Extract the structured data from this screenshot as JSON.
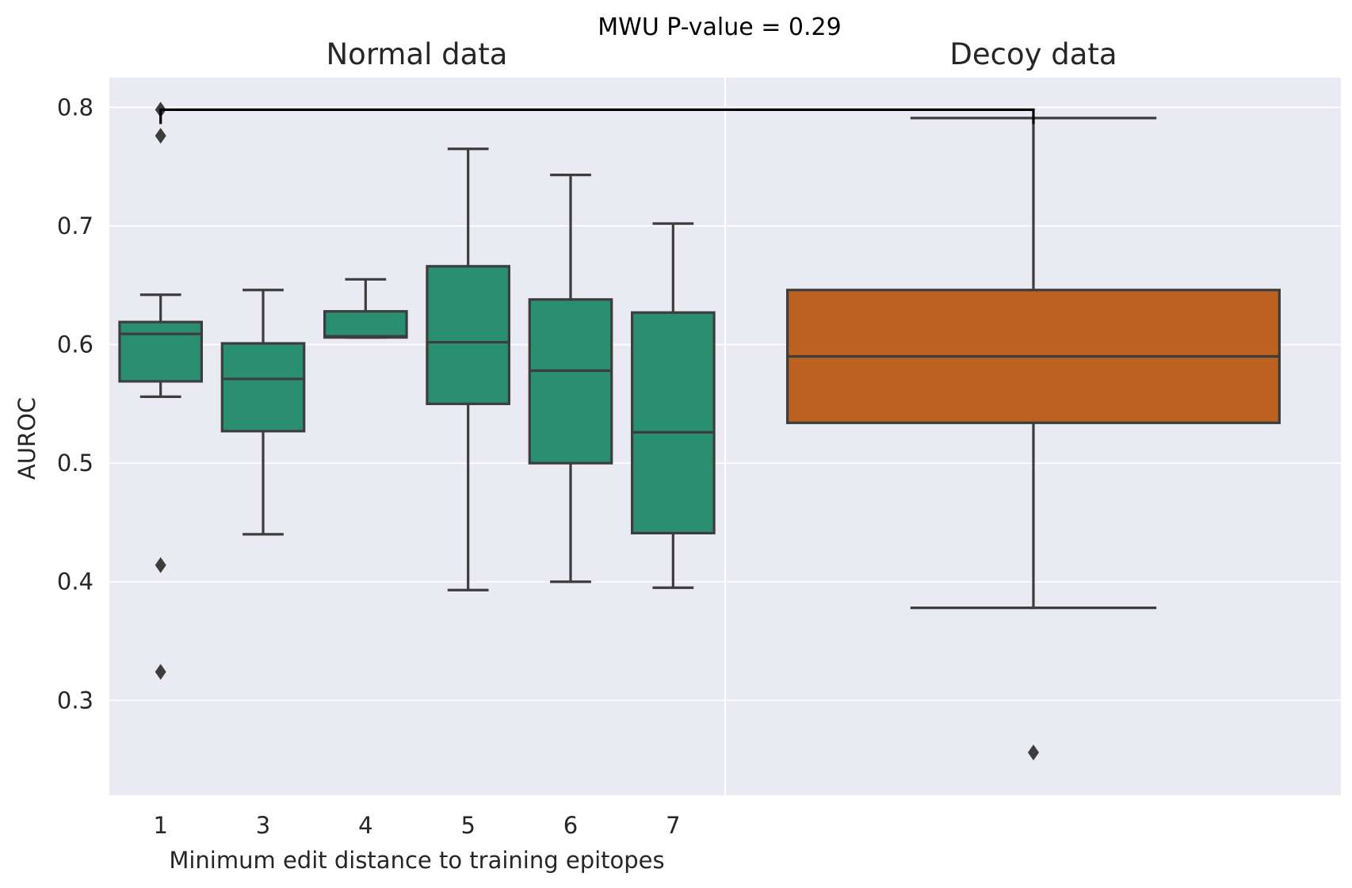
{
  "chart_data": {
    "type": "box",
    "title": "MWU P-value = 0.29",
    "ylabel": "AUROC",
    "ylim": [
      0.22,
      0.825
    ],
    "yticks": [
      "0.3",
      "0.4",
      "0.5",
      "0.6",
      "0.7",
      "0.8"
    ],
    "grid": true,
    "significance_bracket": {
      "from": "Normal data",
      "to": "Decoy data",
      "y": 0.798
    },
    "panels": [
      {
        "title": "Normal data",
        "xlabel": "Minimum edit distance to training epitopes",
        "color": "#2a8f70",
        "categories": [
          "1",
          "3",
          "4",
          "5",
          "6",
          "7"
        ],
        "boxes": [
          {
            "whisker_low": 0.556,
            "q1": 0.569,
            "median": 0.609,
            "q3": 0.619,
            "whisker_high": 0.642,
            "outliers": [
              0.798,
              0.776,
              0.414,
              0.324
            ]
          },
          {
            "whisker_low": 0.44,
            "q1": 0.527,
            "median": 0.571,
            "q3": 0.601,
            "whisker_high": 0.646,
            "outliers": []
          },
          {
            "whisker_low": 0.606,
            "q1": 0.606,
            "median": 0.607,
            "q3": 0.628,
            "whisker_high": 0.655,
            "outliers": []
          },
          {
            "whisker_low": 0.393,
            "q1": 0.55,
            "median": 0.602,
            "q3": 0.666,
            "whisker_high": 0.765,
            "outliers": []
          },
          {
            "whisker_low": 0.4,
            "q1": 0.5,
            "median": 0.578,
            "q3": 0.638,
            "whisker_high": 0.743,
            "outliers": []
          },
          {
            "whisker_low": 0.395,
            "q1": 0.441,
            "median": 0.526,
            "q3": 0.627,
            "whisker_high": 0.702,
            "outliers": []
          }
        ]
      },
      {
        "title": "Decoy data",
        "xlabel": "",
        "color": "#bc611f",
        "categories": [
          ""
        ],
        "boxes": [
          {
            "whisker_low": 0.378,
            "q1": 0.534,
            "median": 0.59,
            "q3": 0.646,
            "whisker_high": 0.791,
            "outliers": [
              0.256
            ]
          }
        ]
      }
    ]
  }
}
